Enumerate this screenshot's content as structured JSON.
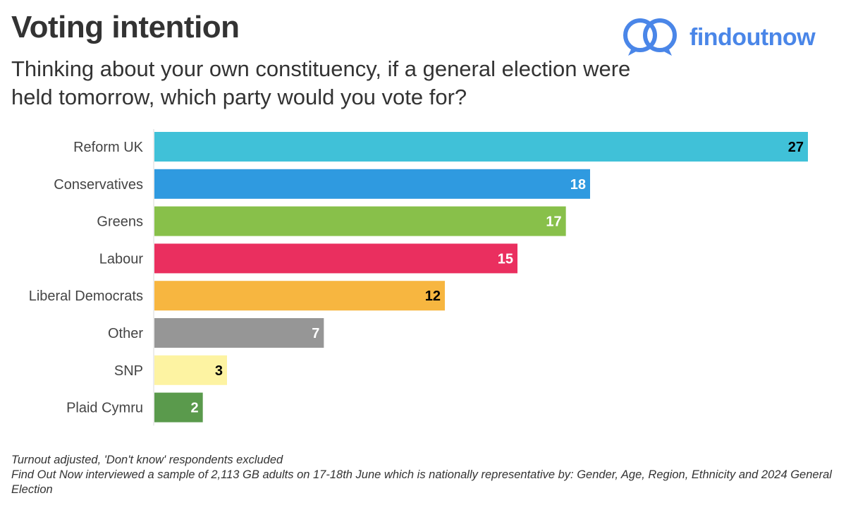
{
  "header": {
    "title": "Voting intention",
    "subtitle": "Thinking about your own constituency, if a general election were held tomorrow, which party would you vote for?"
  },
  "logo": {
    "icon": "overlapping-speech-bubbles-icon",
    "text": "findoutnow",
    "color": "#4a86e8"
  },
  "chart_data": {
    "type": "bar",
    "orientation": "horizontal",
    "categories": [
      "Reform UK",
      "Conservatives",
      "Greens",
      "Labour",
      "Liberal Democrats",
      "Other",
      "SNP",
      "Plaid Cymru"
    ],
    "values": [
      27,
      18,
      17,
      15,
      12,
      7,
      3,
      2
    ],
    "colors": [
      "#40c1d8",
      "#2f9ae0",
      "#88c04a",
      "#ea2f5f",
      "#f7b640",
      "#969696",
      "#fdf3a2",
      "#5a9a4c"
    ],
    "label_colors": [
      "#000000",
      "#ffffff",
      "#ffffff",
      "#ffffff",
      "#000000",
      "#ffffff",
      "#000000",
      "#ffffff"
    ],
    "title": "",
    "xlabel": "",
    "ylabel": "",
    "xlim": [
      0,
      27
    ],
    "grid": false,
    "legend": "none"
  },
  "footnotes": {
    "line1": "Turnout adjusted, 'Don't know' respondents excluded",
    "line2": "Find Out Now interviewed a sample of 2,113 GB adults on 17-18th June which is nationally representative by: Gender, Age, Region, Ethnicity and 2024 General Election"
  }
}
